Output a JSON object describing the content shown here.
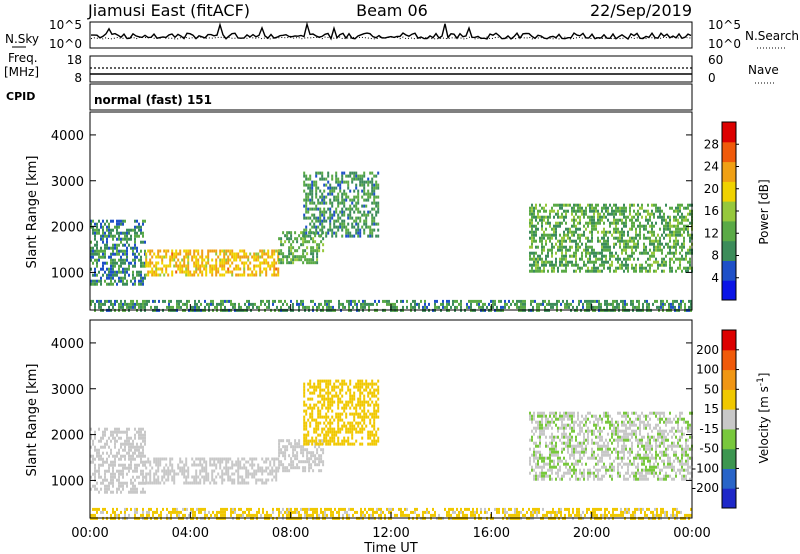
{
  "header": {
    "station": "Jiamusi East (fitACF)",
    "beam": "Beam 06",
    "date": "22/Sep/2019"
  },
  "noise_panel": {
    "left_label": "N.Sky",
    "right_label": "N.Search",
    "left_ticks": [
      "10^5",
      "10^0"
    ],
    "right_ticks": [
      "10^5",
      "10^0"
    ]
  },
  "freq_panel": {
    "left_label_1": "Freq.",
    "left_label_2": "[MHz]",
    "right_label": "Nave",
    "left_ticks": [
      "18",
      "8"
    ],
    "right_ticks": [
      "60",
      "0"
    ]
  },
  "cpid": {
    "label": "CPID",
    "value": "normal (fast) 151"
  },
  "chart_data": [
    {
      "type": "heatmap",
      "panel": "power",
      "xlabel": "Time UT",
      "ylabel": "Slant Range [km]",
      "xlim": [
        0,
        24
      ],
      "ylim": [
        180,
        4500
      ],
      "x_ticks": [
        "00:00",
        "04:00",
        "08:00",
        "12:00",
        "16:00",
        "20:00",
        "00:00"
      ],
      "y_ticks": [
        1000,
        2000,
        3000,
        4000
      ],
      "colorbar": {
        "label": "Power [dB]",
        "range": [
          0,
          32
        ],
        "ticks": [
          4,
          8,
          12,
          16,
          20,
          24,
          28
        ],
        "colors": [
          "#0a14e6",
          "#1e50c8",
          "#3c8c5a",
          "#5aaa46",
          "#96c83c",
          "#f0d200",
          "#f0a014",
          "#f05a0a",
          "#dc0000"
        ]
      },
      "regions": [
        {
          "t": [
            0.0,
            2.2
          ],
          "range": [
            750,
            2150
          ],
          "power": 9
        },
        {
          "t": [
            2.2,
            7.5
          ],
          "range": [
            950,
            1500
          ],
          "power": 21
        },
        {
          "t": [
            7.5,
            9.3
          ],
          "range": [
            1200,
            1900
          ],
          "power": 12
        },
        {
          "t": [
            8.5,
            11.5
          ],
          "range": [
            1800,
            3200
          ],
          "power": 10
        },
        {
          "t": [
            17.5,
            24.0
          ],
          "range": [
            1000,
            2500
          ],
          "power": 12
        },
        {
          "t": [
            0.0,
            24.0
          ],
          "range": [
            180,
            400
          ],
          "power": 10
        }
      ]
    },
    {
      "type": "heatmap",
      "panel": "velocity",
      "xlabel": "Time UT",
      "ylabel": "Slant Range [km]",
      "xlim": [
        0,
        24
      ],
      "ylim": [
        180,
        4500
      ],
      "x_ticks": [
        "00:00",
        "04:00",
        "08:00",
        "12:00",
        "16:00",
        "20:00",
        "00:00"
      ],
      "y_ticks": [
        1000,
        2000,
        3000,
        4000
      ],
      "colorbar": {
        "label": "Velocity [m s^-1]",
        "range": [
          -250,
          250
        ],
        "ticks": [
          200,
          100,
          50,
          15,
          -15,
          -50,
          -100,
          -200
        ],
        "colors": [
          "#1e28c8",
          "#2864c8",
          "#3c9650",
          "#78c83c",
          "#c8c8c8",
          "#f0c800",
          "#f09614",
          "#f05a0a",
          "#dc0000"
        ]
      },
      "regions": [
        {
          "t": [
            0.0,
            2.2
          ],
          "range": [
            750,
            2150
          ],
          "velocity": 0
        },
        {
          "t": [
            2.2,
            7.5
          ],
          "range": [
            950,
            1500
          ],
          "velocity": 0
        },
        {
          "t": [
            7.5,
            9.3
          ],
          "range": [
            1200,
            1900
          ],
          "velocity": 0
        },
        {
          "t": [
            8.5,
            11.5
          ],
          "range": [
            1800,
            3200
          ],
          "velocity": 60
        },
        {
          "t": [
            17.5,
            24.0
          ],
          "range": [
            1000,
            2500
          ],
          "velocity": -20
        },
        {
          "t": [
            0.0,
            24.0
          ],
          "range": [
            180,
            400
          ],
          "velocity": 40
        }
      ]
    }
  ]
}
